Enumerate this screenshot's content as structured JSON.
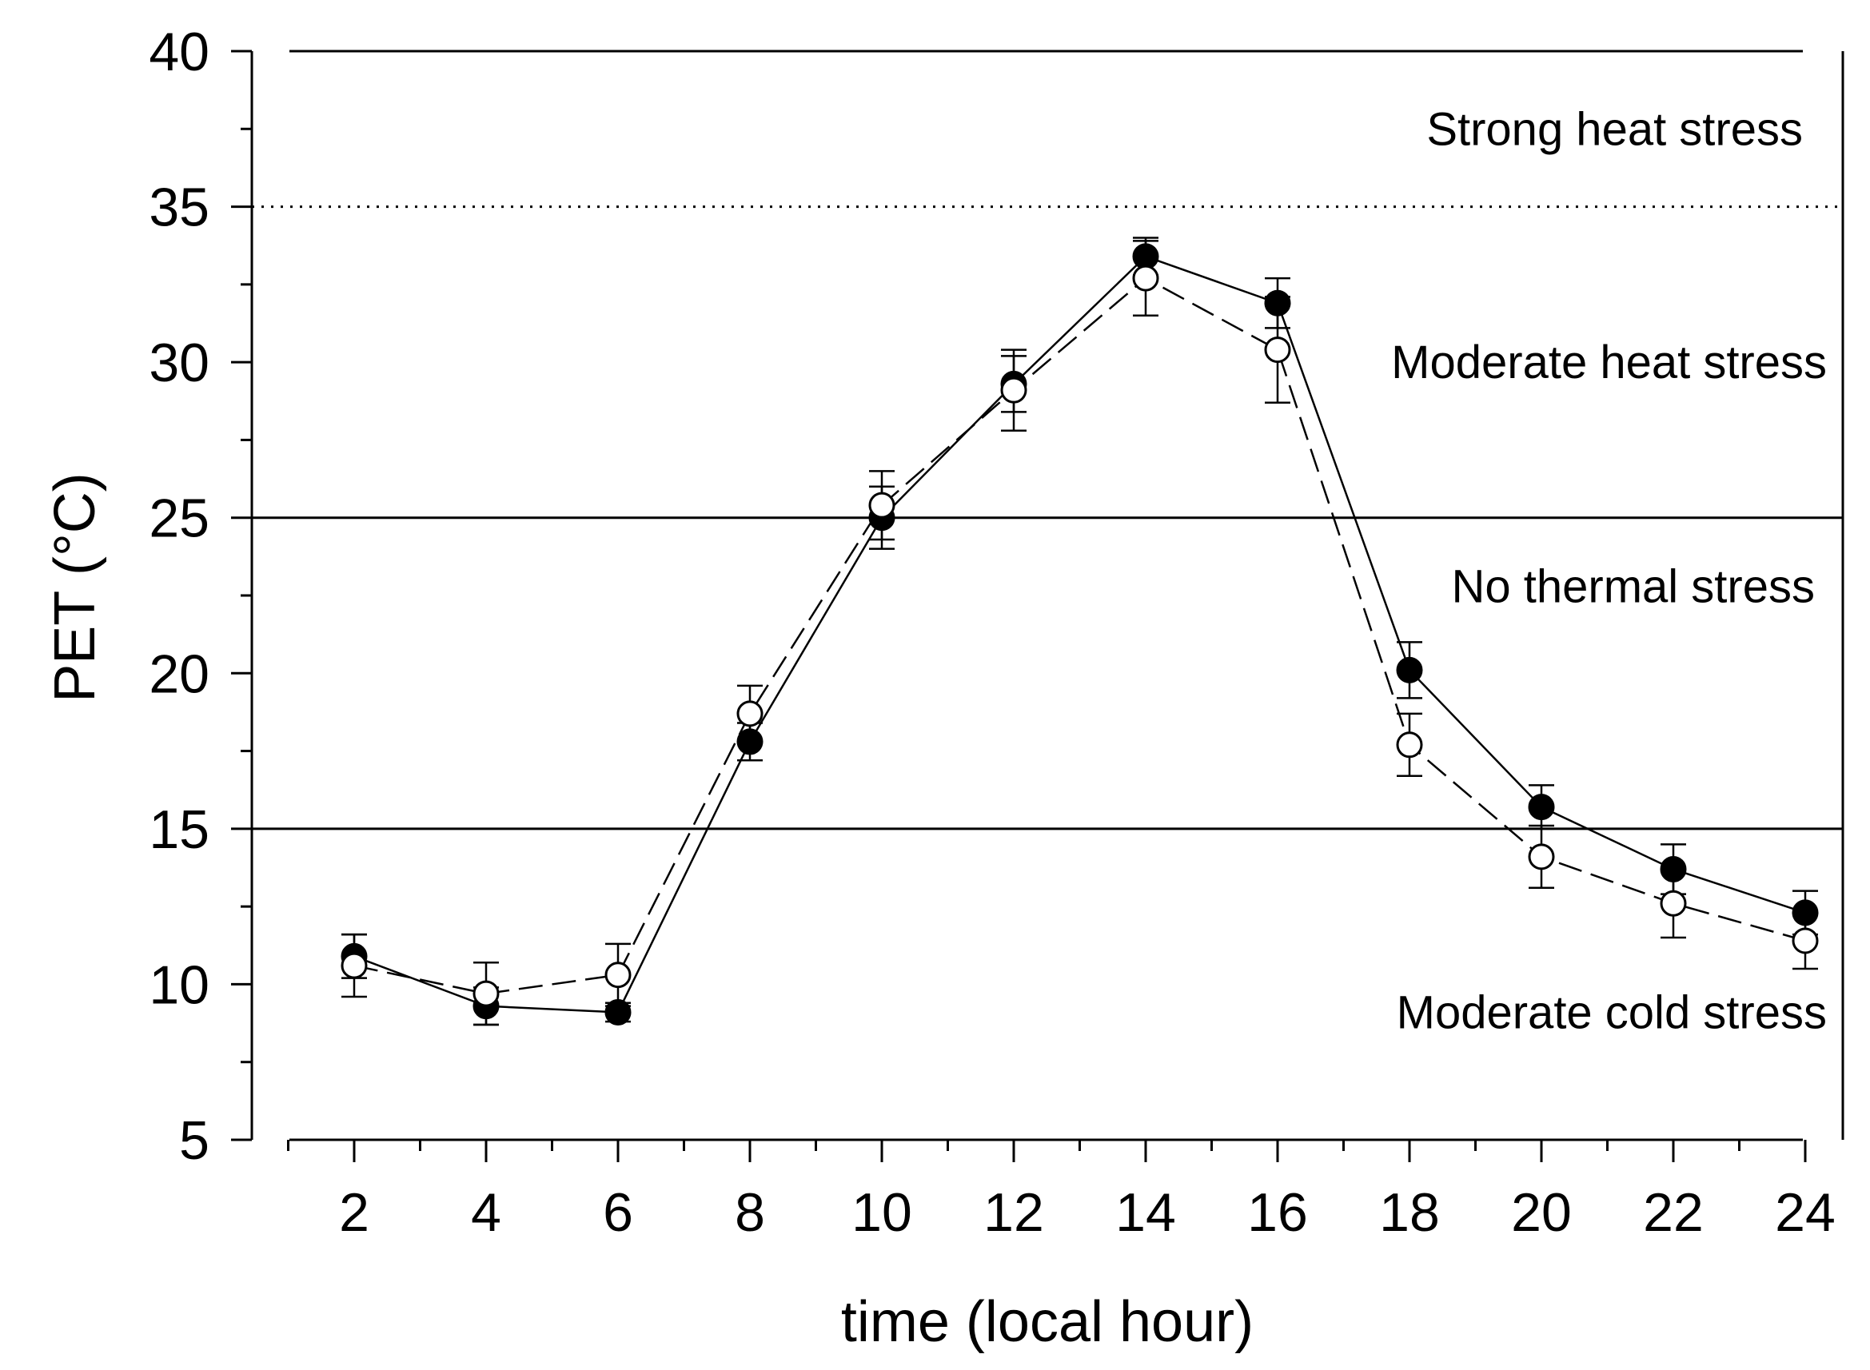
{
  "chart_data": {
    "type": "line",
    "title": "",
    "xlabel": "time (local hour)",
    "ylabel": "PET (°C)",
    "xlim": [
      0,
      24
    ],
    "ylim": [
      5,
      40
    ],
    "x_ticks": [
      2,
      4,
      6,
      8,
      10,
      12,
      14,
      16,
      18,
      20,
      22,
      24
    ],
    "y_ticks": [
      5,
      10,
      15,
      20,
      25,
      30,
      35,
      40
    ],
    "y_minor_step": 2.5,
    "x": [
      2,
      4,
      6,
      8,
      10,
      12,
      14,
      16,
      18,
      20,
      22,
      24
    ],
    "series": [
      {
        "name": "filled",
        "marker": "filled-circle",
        "line_style": "solid",
        "values": [
          10.9,
          9.3,
          9.1,
          17.8,
          25.0,
          29.3,
          33.4,
          31.9,
          20.1,
          15.7,
          13.7,
          12.3
        ],
        "error": [
          0.7,
          0.6,
          0.3,
          0.6,
          1.0,
          0.9,
          0.6,
          0.8,
          0.9,
          0.7,
          0.8,
          0.7
        ]
      },
      {
        "name": "open",
        "marker": "open-circle",
        "line_style": "dashed",
        "values": [
          10.6,
          9.7,
          10.3,
          18.7,
          25.4,
          29.1,
          32.7,
          30.4,
          17.7,
          14.1,
          12.6,
          11.4
        ],
        "error": [
          1.0,
          1.0,
          1.0,
          0.9,
          1.1,
          1.3,
          1.2,
          1.7,
          1.0,
          1.0,
          1.1,
          0.9
        ]
      }
    ],
    "reference_lines": [
      {
        "y": 40,
        "style": "solid"
      },
      {
        "y": 35,
        "style": "dotted"
      },
      {
        "y": 25,
        "style": "solid"
      },
      {
        "y": 15,
        "style": "solid"
      }
    ],
    "zone_labels": [
      {
        "text": "Strong heat stress",
        "y": 37.5
      },
      {
        "text": "Moderate heat stress",
        "y": 30
      },
      {
        "text": "No thermal stress",
        "y": 22.8
      },
      {
        "text": "Moderate cold stress",
        "y": 9.1
      }
    ],
    "colors": {
      "ink": "#000000",
      "background": "#ffffff"
    }
  }
}
